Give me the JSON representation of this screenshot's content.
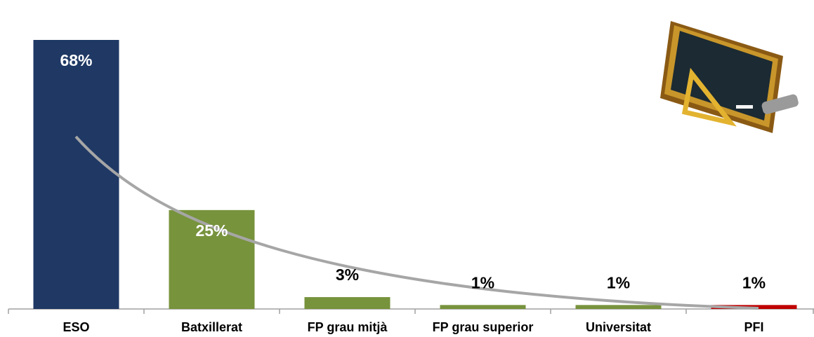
{
  "chart_data": {
    "type": "bar",
    "categories": [
      "ESO",
      "Batxillerat",
      "FP grau mitjà",
      "FP grau superior",
      "Universitat",
      "PFI"
    ],
    "values": [
      68,
      25,
      3,
      1,
      1,
      1
    ],
    "value_labels": [
      "68%",
      "25%",
      "3%",
      "1%",
      "1%",
      "1%"
    ],
    "colors": [
      "#1f3864",
      "#77933c",
      "#77933c",
      "#77933c",
      "#77933c",
      "#c00000"
    ]
  }
}
